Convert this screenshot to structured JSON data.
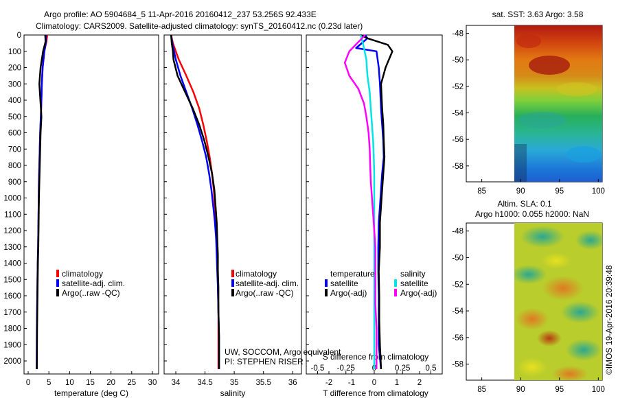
{
  "header": {
    "line1": "Argo profile: AO 5904684_5 11-Apr-2016 20160412_237 53.256S 92.433E",
    "line2": "Climatology: CARS2009. Satellite-adjusted climatology: synTS_20160412.nc (0.23d later)"
  },
  "colors": {
    "climatology": "#ff0000",
    "satellite": "#0000ff",
    "argo": "#000000",
    "t_satellite": "#0000ff",
    "s_satellite": "#00e5e5",
    "s_argo": "#ff00ff"
  },
  "credits": {
    "line1": "UW, SOCCOM, Argo equivalent",
    "line2": "PI: STEPHEN RISER",
    "watermark": "©IMOS 19-Apr-2016 20:39:48"
  },
  "chart_data": [
    {
      "type": "line",
      "id": "temperature",
      "xlabel": "temperature (deg C)",
      "ylabel": "",
      "xlim": [
        -1,
        31.5
      ],
      "ylim": [
        2080,
        0
      ],
      "xticks": [
        0,
        5,
        10,
        15,
        20,
        25,
        30
      ],
      "yticks": [
        0,
        100,
        200,
        300,
        400,
        500,
        600,
        700,
        800,
        900,
        1000,
        1100,
        1200,
        1300,
        1400,
        1500,
        1600,
        1700,
        1800,
        1900,
        2000
      ],
      "legend": [
        "climatology",
        "satellite-adj. clim.",
        "Argo(..raw -QC)"
      ],
      "legend_position": "bottom-center",
      "series": [
        {
          "name": "climatology",
          "color": "#ff0000",
          "x": [
            4.6,
            4.4,
            3.9,
            3.5,
            3.3,
            3.2,
            3.1,
            2.9,
            2.8,
            2.7,
            2.6,
            2.55,
            2.5,
            2.45,
            2.4,
            2.3,
            2.25,
            2.2,
            2.15,
            2.1,
            2.05
          ],
          "y": [
            0,
            40,
            100,
            200,
            300,
            400,
            500,
            600,
            700,
            800,
            900,
            1000,
            1100,
            1200,
            1300,
            1400,
            1500,
            1600,
            1700,
            1800,
            2050
          ]
        },
        {
          "name": "satellite-adj. clim.",
          "color": "#0000ff",
          "x": [
            4.3,
            4.3,
            3.9,
            3.5,
            3.3,
            3.2,
            3.05,
            2.9,
            2.8,
            2.7,
            2.6,
            2.55,
            2.5,
            2.45,
            2.4,
            2.3,
            2.25,
            2.2,
            2.15,
            2.1,
            2.05
          ],
          "y": [
            0,
            40,
            100,
            200,
            300,
            400,
            500,
            600,
            700,
            800,
            900,
            1000,
            1100,
            1200,
            1300,
            1400,
            1500,
            1600,
            1700,
            1800,
            2050
          ]
        },
        {
          "name": "Argo(..raw -QC)",
          "color": "#000000",
          "x": [
            4.1,
            4.2,
            3.6,
            3.0,
            2.7,
            2.9,
            3.2,
            3.0,
            2.9,
            2.8,
            2.7,
            2.6,
            2.55,
            2.5,
            2.45,
            2.35,
            2.3,
            2.25,
            2.2,
            2.15,
            2.1
          ],
          "y": [
            0,
            40,
            100,
            200,
            300,
            380,
            500,
            600,
            700,
            800,
            900,
            1000,
            1100,
            1200,
            1300,
            1400,
            1500,
            1600,
            1700,
            1800,
            2050
          ]
        }
      ]
    },
    {
      "type": "line",
      "id": "salinity",
      "xlabel": "salinity",
      "ylabel": "",
      "xlim": [
        33.8,
        36.15
      ],
      "ylim": [
        2080,
        0
      ],
      "xticks": [
        34,
        34.5,
        35,
        35.5,
        36
      ],
      "xticklabels": [
        "34",
        "34.5",
        "35",
        "35.5",
        "36"
      ],
      "legend": [
        "climatology",
        "satellite-adj. clim.",
        "Argo(..raw -QC)"
      ],
      "legend_position": "bottom-center",
      "series": [
        {
          "name": "climatology",
          "color": "#ff0000",
          "x": [
            33.92,
            33.95,
            34.0,
            34.05,
            34.18,
            34.3,
            34.4,
            34.47,
            34.53,
            34.58,
            34.62,
            34.65,
            34.67,
            34.69,
            34.7,
            34.71,
            34.72,
            34.72,
            34.73,
            34.73,
            34.73
          ],
          "y": [
            0,
            50,
            100,
            150,
            250,
            350,
            450,
            550,
            650,
            750,
            850,
            950,
            1050,
            1150,
            1250,
            1350,
            1450,
            1550,
            1700,
            1850,
            2050
          ]
        },
        {
          "name": "satellite-adj. clim.",
          "color": "#0000ff",
          "x": [
            33.92,
            33.94,
            33.97,
            34.0,
            34.08,
            34.18,
            34.28,
            34.37,
            34.45,
            34.52,
            34.57,
            34.61,
            34.64,
            34.67,
            34.69,
            34.7,
            34.71,
            34.72,
            34.73,
            34.74,
            34.74
          ],
          "y": [
            0,
            50,
            100,
            150,
            250,
            350,
            450,
            550,
            650,
            750,
            850,
            950,
            1050,
            1150,
            1250,
            1350,
            1450,
            1550,
            1700,
            1850,
            2050
          ]
        },
        {
          "name": "Argo(..raw -QC)",
          "color": "#000000",
          "x": [
            33.92,
            33.93,
            33.95,
            33.96,
            34.03,
            34.16,
            34.29,
            34.4,
            34.49,
            34.56,
            34.62,
            34.66,
            34.68,
            34.7,
            34.71,
            34.72,
            34.72,
            34.73,
            34.73,
            34.74,
            34.74
          ],
          "y": [
            0,
            50,
            100,
            150,
            250,
            350,
            450,
            550,
            650,
            750,
            850,
            950,
            1050,
            1150,
            1250,
            1350,
            1450,
            1550,
            1700,
            1850,
            2050
          ]
        }
      ]
    },
    {
      "type": "line",
      "id": "differences",
      "xlabel": "T difference from climatology",
      "xlabel2": "S difference from climatology",
      "ylabel": "",
      "xlim": [
        -3,
        3
      ],
      "ylim": [
        2080,
        0
      ],
      "xticks": [
        -2,
        -1,
        0,
        1,
        2
      ],
      "xticklabels": [
        "-2",
        "-1",
        "0",
        "1",
        "2"
      ],
      "xticks2": [
        -2.5,
        -1.25,
        0,
        1.25,
        2.5
      ],
      "xticklabels2": [
        "-0.5",
        "-0.25",
        "0",
        "0.25",
        "0.5"
      ],
      "legend_groups": [
        {
          "title": "temperature",
          "entries": [
            "satellite",
            "Argo(-adj)"
          ]
        },
        {
          "title": "salinity",
          "entries": [
            "satellite",
            "Argo(-adj)"
          ]
        }
      ],
      "legend_position": "center",
      "series": [
        {
          "name": "T satellite",
          "color": "#0000ff",
          "x": [
            -0.4,
            -0.3,
            -0.8,
            0.1,
            0.2,
            0.25,
            0.3,
            0.35,
            0.4,
            0.42,
            0.35,
            0.3,
            0.25,
            0.2,
            0.18,
            0.18,
            0.2,
            0.2,
            0.2,
            0.25,
            0.3
          ],
          "y": [
            0,
            20,
            80,
            100,
            200,
            300,
            450,
            550,
            650,
            750,
            850,
            950,
            1050,
            1150,
            1300,
            1450,
            1600,
            1750,
            1900,
            1980,
            2050
          ]
        },
        {
          "name": "T Argo(-adj)",
          "color": "#000000",
          "x": [
            -0.6,
            -0.3,
            0.6,
            0.8,
            0.5,
            0.3,
            0.35,
            0.4,
            0.42,
            0.45,
            0.4,
            0.35,
            0.3,
            0.25,
            0.25,
            0.2,
            0.22,
            0.22,
            0.25,
            0.28,
            0.3
          ],
          "y": [
            0,
            20,
            60,
            100,
            200,
            300,
            450,
            550,
            650,
            750,
            850,
            950,
            1050,
            1150,
            1300,
            1450,
            1600,
            1750,
            1900,
            1980,
            2050
          ]
        },
        {
          "name": "S satellite",
          "color": "#00e5e5",
          "x": [
            -0.6,
            -0.5,
            -0.35,
            -0.3,
            -0.2,
            -0.15,
            -0.1,
            -0.05,
            -0.02,
            0.0,
            0.0,
            0.0,
            0.0,
            0.0,
            0.0,
            0.0,
            0.0,
            0.0,
            0.0,
            0.0,
            0.0
          ],
          "y": [
            0,
            50,
            150,
            250,
            350,
            450,
            550,
            650,
            750,
            850,
            950,
            1050,
            1150,
            1250,
            1350,
            1450,
            1550,
            1700,
            1850,
            1950,
            2050
          ]
        },
        {
          "name": "S Argo(-adj)",
          "color": "#ff00ff",
          "x": [
            -0.4,
            -1.1,
            -1.3,
            -1.1,
            -0.7,
            -0.45,
            -0.35,
            -0.25,
            -0.2,
            -0.18,
            -0.15,
            -0.1,
            -0.05,
            0.0,
            0.05,
            0.05,
            0.05,
            0.05,
            0.1,
            0.1,
            0.1
          ],
          "y": [
            0,
            100,
            170,
            250,
            330,
            420,
            500,
            600,
            700,
            800,
            900,
            1000,
            1100,
            1200,
            1300,
            1400,
            1500,
            1650,
            1800,
            1950,
            2050
          ]
        }
      ]
    },
    {
      "type": "heatmap",
      "id": "sst-map",
      "title": "sat. SST: 3.63 Argo: 3.58",
      "xlim": [
        83,
        100.5
      ],
      "ylim": [
        -59.2,
        -47.4
      ],
      "xticks": [
        85,
        90,
        95,
        100
      ],
      "yticks": [
        -48,
        -50,
        -52,
        -54,
        -56,
        -58
      ],
      "data_lon_range": [
        90,
        100.5
      ]
    },
    {
      "type": "heatmap",
      "id": "sla-map",
      "title": "Altim. SLA: 0.1",
      "subtitle": "Argo h1000: 0.055 h2000: NaN",
      "xlim": [
        83,
        100.5
      ],
      "ylim": [
        -59.2,
        -47.4
      ],
      "xticks": [
        85,
        90,
        95,
        100
      ],
      "yticks": [
        -48,
        -50,
        -52,
        -54,
        -56,
        -58
      ],
      "data_lon_range": [
        90,
        100.5
      ]
    }
  ]
}
